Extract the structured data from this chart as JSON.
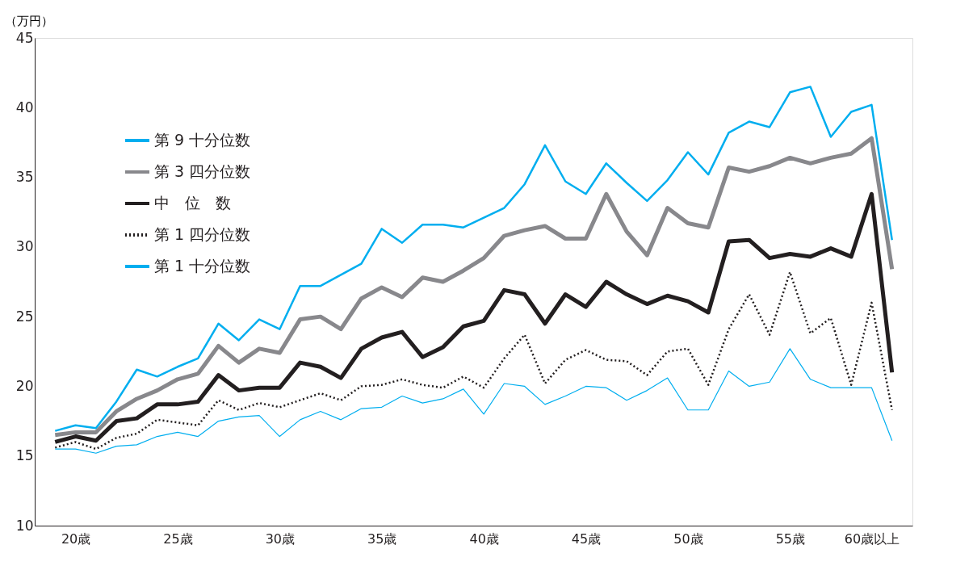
{
  "chart_data": {
    "type": "line",
    "ylabel": "（万円）",
    "categories": [
      null,
      "20歳",
      null,
      null,
      null,
      null,
      "25歳",
      null,
      null,
      null,
      null,
      "30歳",
      null,
      null,
      null,
      null,
      "35歳",
      null,
      null,
      null,
      null,
      "40歳",
      null,
      null,
      null,
      null,
      "45歳",
      null,
      null,
      null,
      null,
      "50歳",
      null,
      null,
      null,
      null,
      "55歳",
      null,
      null,
      null,
      "60歳以上",
      null
    ],
    "series": [
      {
        "name": "第 9 十分位数",
        "color": "#00aeef",
        "line_style": "solid",
        "values": [
          16.8,
          17.2,
          17.0,
          18.9,
          21.2,
          20.7,
          21.4,
          22.0,
          24.5,
          23.3,
          24.8,
          24.1,
          27.2,
          27.2,
          28.0,
          28.8,
          31.3,
          30.3,
          31.6,
          31.6,
          31.4,
          32.1,
          32.8,
          34.5,
          37.3,
          34.7,
          33.8,
          36.0,
          34.6,
          33.3,
          34.8,
          36.8,
          35.2,
          38.2,
          39.0,
          38.6,
          41.1,
          41.5,
          37.9,
          39.7,
          40.2,
          30.5
        ]
      },
      {
        "name": "第 3 四分位数",
        "color": "#88888c",
        "line_style": "solid",
        "values": [
          16.5,
          16.7,
          16.7,
          18.2,
          19.1,
          19.7,
          20.5,
          20.9,
          22.9,
          21.7,
          22.7,
          22.4,
          24.8,
          25.0,
          24.1,
          26.3,
          27.1,
          26.4,
          27.8,
          27.5,
          28.3,
          29.2,
          30.8,
          31.2,
          31.5,
          30.6,
          30.6,
          33.8,
          31.1,
          29.4,
          32.8,
          31.7,
          31.4,
          35.7,
          35.4,
          35.8,
          36.4,
          36.0,
          36.4,
          36.7,
          37.8,
          28.4
        ]
      },
      {
        "name": "中　位　数",
        "color": "#231f20",
        "line_style": "solid",
        "values": [
          16.0,
          16.4,
          16.1,
          17.5,
          17.7,
          18.7,
          18.7,
          18.9,
          20.8,
          19.7,
          19.9,
          19.9,
          21.7,
          21.4,
          20.6,
          22.7,
          23.5,
          23.9,
          22.1,
          22.8,
          24.3,
          24.7,
          26.9,
          26.6,
          24.5,
          26.6,
          25.7,
          27.5,
          26.6,
          25.9,
          26.5,
          26.1,
          25.3,
          30.4,
          30.5,
          29.2,
          29.5,
          29.3,
          29.9,
          29.3,
          33.8,
          21.0
        ]
      },
      {
        "name": "第 1 四分位数",
        "color": "#231f20",
        "line_style": "dotted",
        "values": [
          15.6,
          16.0,
          15.5,
          16.3,
          16.6,
          17.6,
          17.4,
          17.2,
          19.0,
          18.3,
          18.8,
          18.5,
          19.0,
          19.5,
          19.0,
          20.0,
          20.1,
          20.5,
          20.1,
          19.9,
          20.7,
          19.9,
          22.0,
          23.7,
          20.2,
          21.9,
          22.6,
          21.9,
          21.8,
          20.8,
          22.5,
          22.7,
          20.1,
          24.1,
          26.6,
          23.7,
          28.2,
          23.8,
          24.9,
          20.1,
          26.0,
          18.3
        ]
      },
      {
        "name": "第 1 十分位数",
        "color": "#00aeef",
        "line_style": "solid",
        "values": [
          15.5,
          15.5,
          15.2,
          15.7,
          15.8,
          16.4,
          16.7,
          16.4,
          17.5,
          17.8,
          17.9,
          16.4,
          17.6,
          18.2,
          17.6,
          18.4,
          18.5,
          19.3,
          18.8,
          19.1,
          19.8,
          18.0,
          20.2,
          20.0,
          18.7,
          19.3,
          20.0,
          19.9,
          19.0,
          19.7,
          20.6,
          18.3,
          18.3,
          21.1,
          20.0,
          20.3,
          22.7,
          20.5,
          19.9,
          19.9,
          19.9,
          16.1
        ]
      }
    ],
    "ylim": [
      10,
      45
    ],
    "yticks": [
      10,
      15,
      20,
      25,
      30,
      35,
      40,
      45
    ],
    "grid": false,
    "legend": "top left",
    "marker": "none"
  }
}
